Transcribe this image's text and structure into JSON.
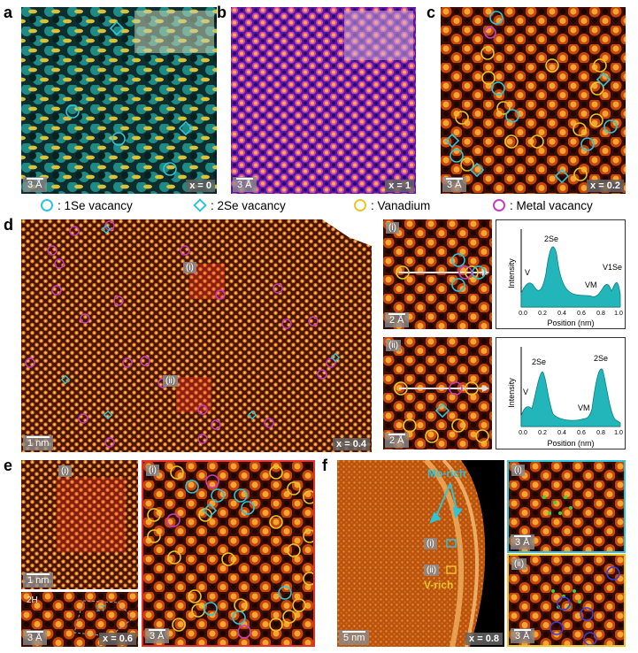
{
  "panel_labels": [
    "a",
    "b",
    "c",
    "d",
    "e",
    "f"
  ],
  "scale_bars": {
    "a": "3 Å",
    "b": "3 Å",
    "c": "3 Å",
    "d": "1 nm",
    "d_i": "2 Å",
    "d_ii": "2 Å",
    "e_top": "1 nm",
    "e_bottom": "3 Å",
    "e_right": "3 Å",
    "f_main": "5 nm",
    "f_i": "3 Å",
    "f_ii": "3 Å"
  },
  "x_values": {
    "a": "x = 0",
    "b": "x = 1",
    "c": "x = 0.2",
    "d": "x = 0.4",
    "e": "x = 0.6",
    "f": "x = 0.8"
  },
  "roman": {
    "i": "(i)",
    "ii": "(ii)"
  },
  "legend": [
    {
      "label": ": 1Se vacancy",
      "shape": "circle",
      "color": "#2fc4d6"
    },
    {
      "label": ": 2Se vacancy",
      "shape": "diamond",
      "color": "#2fc4d6"
    },
    {
      "label": ": Vanadium",
      "shape": "circle",
      "color": "#e8c62a"
    },
    {
      "label": ": Metal vacancy",
      "shape": "circle",
      "color": "#c23fc0"
    }
  ],
  "line_profiles": {
    "i": {
      "ylabel": "Intensity",
      "xlabel": "Position (nm)",
      "xticks": [
        "0.0",
        "0.2",
        "0.4",
        "0.6",
        "0.8",
        "1.0"
      ],
      "peak_labels": [
        "V",
        "2Se",
        "VM",
        "V1Se"
      ]
    },
    "ii": {
      "ylabel": "Intensity",
      "xlabel": "Position (nm)",
      "xticks": [
        "0.0",
        "0.2",
        "0.4",
        "0.6",
        "0.8",
        "1.0"
      ],
      "peak_labels": [
        "V",
        "2Se",
        "VM",
        "2Se"
      ]
    }
  },
  "annotations": {
    "mo_rich": "Mo-rich",
    "v_rich": "V-rich",
    "phase_2h": "2H",
    "phase_1t": "1T"
  },
  "colors": {
    "cyan": "#2fc4d6",
    "yellow": "#e8c62a",
    "magenta": "#c23fc0",
    "blue": "#3d3dd6",
    "profile_fill": "#22b5b9"
  }
}
